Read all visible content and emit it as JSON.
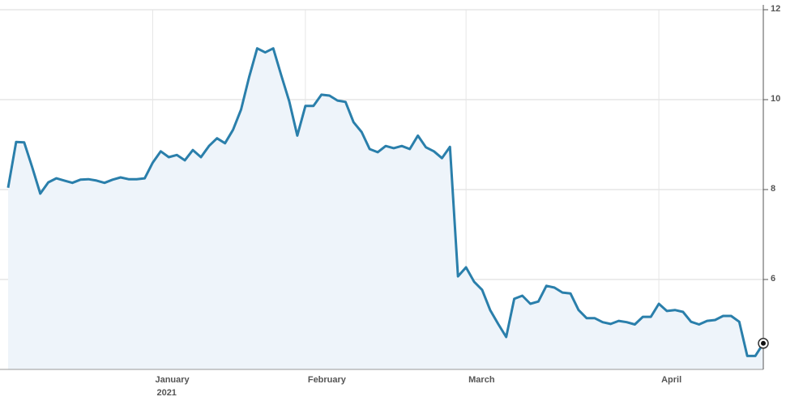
{
  "chart_data": {
    "type": "line",
    "categories": [
      null,
      null,
      null,
      null,
      null,
      null,
      null,
      null,
      null,
      null,
      null,
      null,
      null,
      null,
      null,
      null,
      null,
      null,
      "January",
      null,
      null,
      null,
      null,
      null,
      null,
      null,
      null,
      null,
      null,
      null,
      null,
      null,
      null,
      null,
      null,
      null,
      null,
      "February",
      null,
      null,
      null,
      null,
      null,
      null,
      null,
      null,
      null,
      null,
      null,
      null,
      null,
      null,
      null,
      null,
      null,
      null,
      null,
      "March",
      null,
      null,
      null,
      null,
      null,
      null,
      null,
      null,
      null,
      null,
      null,
      null,
      null,
      null,
      null,
      null,
      null,
      null,
      null,
      null,
      null,
      null,
      null,
      "April",
      null,
      null,
      null,
      null,
      null,
      null,
      null,
      null,
      null,
      null,
      null,
      null,
      null
    ],
    "year": "2021",
    "values": [
      8.04,
      9.06,
      9.05,
      8.5,
      7.91,
      8.16,
      8.25,
      8.2,
      8.15,
      8.22,
      8.23,
      8.2,
      8.15,
      8.22,
      8.27,
      8.23,
      8.23,
      8.25,
      8.6,
      8.85,
      8.72,
      8.77,
      8.65,
      8.88,
      8.72,
      8.97,
      9.14,
      9.03,
      9.33,
      9.78,
      10.5,
      11.14,
      11.05,
      11.14,
      10.54,
      9.96,
      9.2,
      9.86,
      9.86,
      10.11,
      10.09,
      9.98,
      9.95,
      9.5,
      9.28,
      8.9,
      8.83,
      8.97,
      8.92,
      8.97,
      8.9,
      9.2,
      8.94,
      8.85,
      8.7,
      8.95,
      6.07,
      6.27,
      5.95,
      5.77,
      5.32,
      5.01,
      4.72,
      5.57,
      5.64,
      5.46,
      5.51,
      5.86,
      5.82,
      5.71,
      5.69,
      5.32,
      5.14,
      5.14,
      5.05,
      5.01,
      5.08,
      5.05,
      5.0,
      5.17,
      5.17,
      5.46,
      5.3,
      5.32,
      5.28,
      5.06,
      5.0,
      5.08,
      5.1,
      5.19,
      5.19,
      5.06,
      4.3,
      4.3,
      4.58
    ],
    "color": "#2a7fab",
    "ylim": [
      4,
      12
    ],
    "yticks": [
      6,
      8,
      10,
      12
    ],
    "grid": true
  }
}
